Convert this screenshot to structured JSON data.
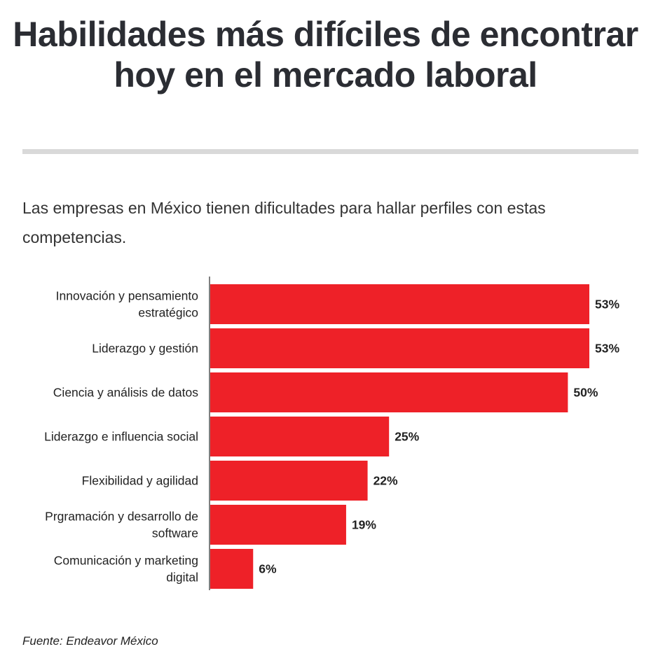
{
  "chart_data": {
    "type": "bar",
    "orientation": "horizontal",
    "title": "Habilidades más difíciles de encontrar hoy en el mercado laboral",
    "subtitle": "Las empresas en México tienen dificultades para hallar perfiles con estas competencias.",
    "categories": [
      [
        "Innovación y pensamiento",
        "estratégico"
      ],
      [
        "Liderazgo y gestión"
      ],
      [
        "Ciencia y análisis de datos"
      ],
      [
        "Liderazgo e influencia social"
      ],
      [
        "Flexibilidad y agilidad"
      ],
      [
        "Prgramación y desarrollo de",
        "software"
      ],
      [
        "Comunicación y marketing",
        "digital"
      ]
    ],
    "values": [
      53,
      53,
      50,
      25,
      22,
      19,
      6
    ],
    "value_labels": [
      "53%",
      "53%",
      "50%",
      "25%",
      "22%",
      "19%",
      "6%"
    ],
    "xlim": [
      0,
      53
    ],
    "unit": "%",
    "xlabel": "",
    "ylabel": "",
    "grid": false,
    "source": "Fuente: Endeavor México"
  },
  "colors": {
    "bar": "#ee2128",
    "axis": "#555555",
    "label": "#222222"
  }
}
